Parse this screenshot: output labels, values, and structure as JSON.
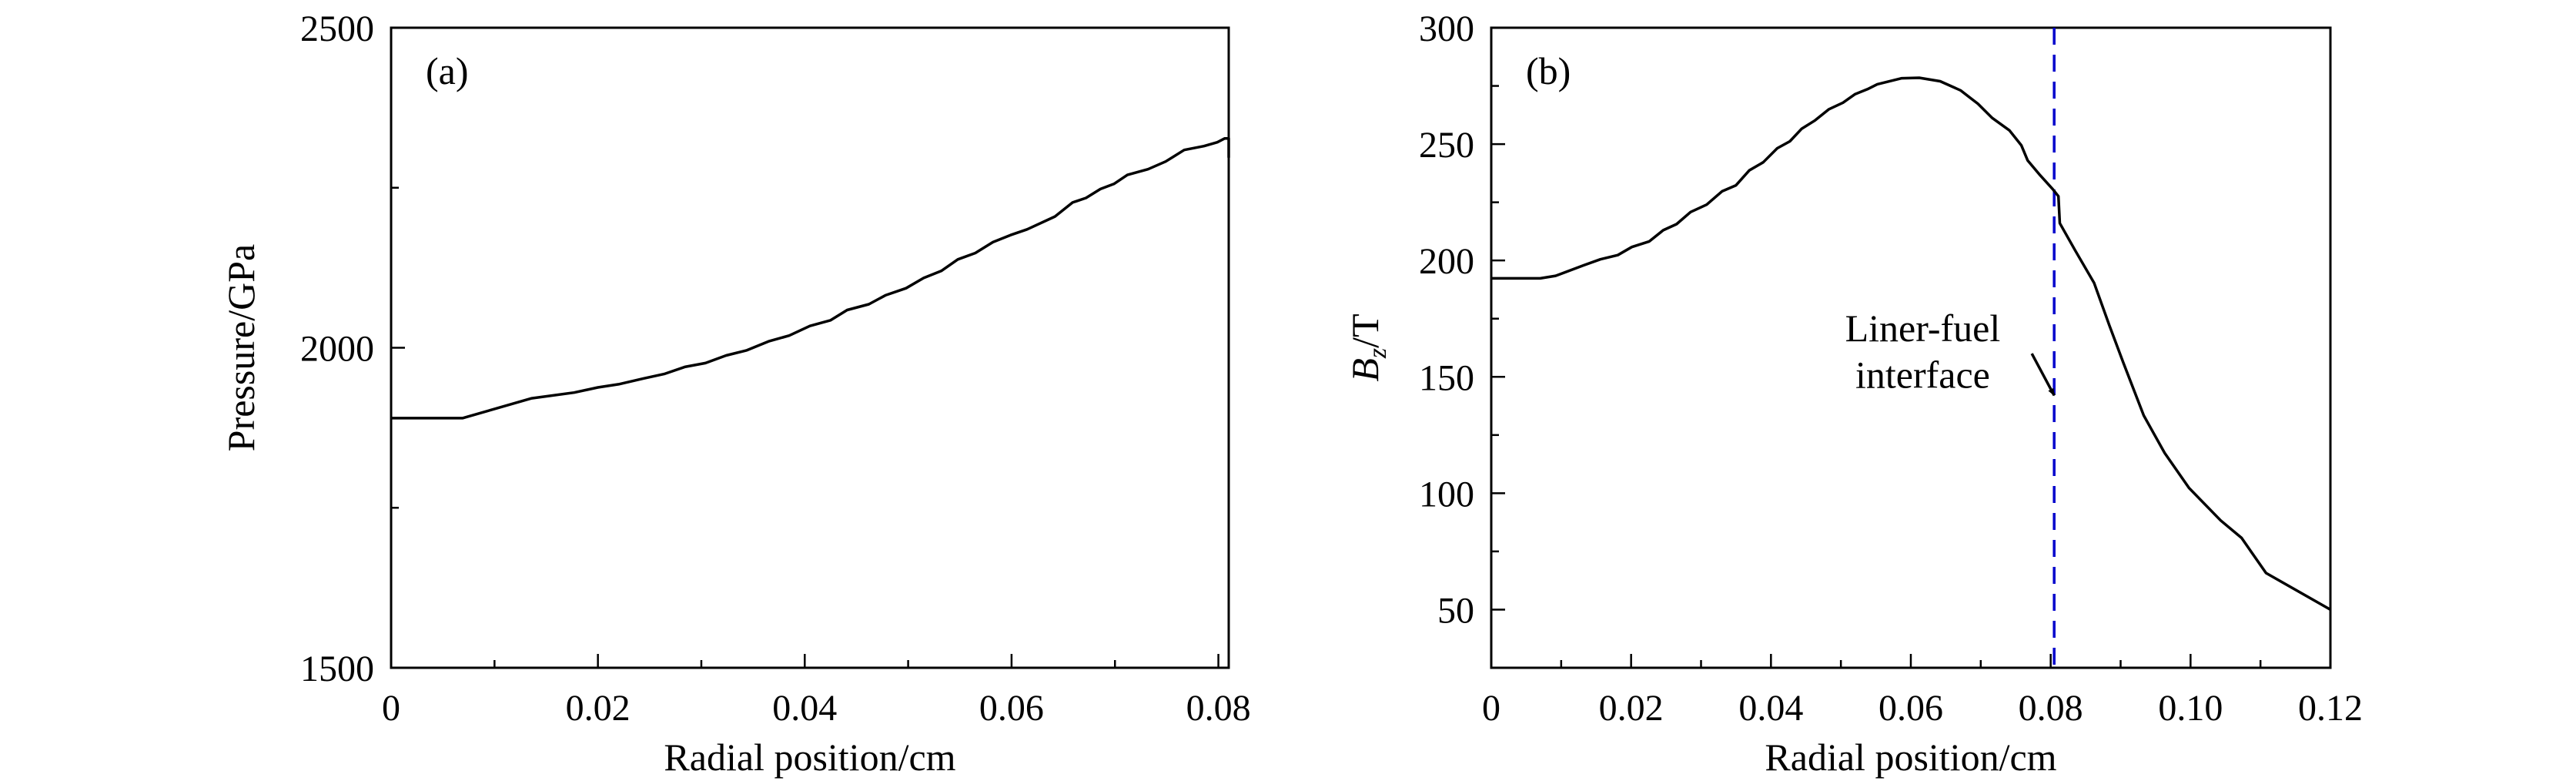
{
  "chart_data": [
    {
      "type": "line",
      "panel_label": "(a)",
      "xlabel": "Radial position/cm",
      "ylabel": "Pressure/GPa",
      "xlim": [
        0,
        0.081
      ],
      "ylim": [
        1500,
        2500
      ],
      "xticks": [
        0,
        0.02,
        0.04,
        0.06,
        0.08
      ],
      "xtick_labels": [
        "0",
        "0.02",
        "0.04",
        "0.06",
        "0.08"
      ],
      "xminor_step": 0.01,
      "yticks": [
        1500,
        2000,
        2500
      ],
      "ytick_labels": [
        "1500",
        "2000",
        "2500"
      ],
      "yminor_step": 250,
      "grid": false,
      "series": [
        {
          "color": "#000000",
          "x": [
            0,
            0.0069,
            0.0136,
            0.0177,
            0.02,
            0.022,
            0.0244,
            0.0264,
            0.0284,
            0.0304,
            0.0324,
            0.0344,
            0.0365,
            0.0385,
            0.0405,
            0.0425,
            0.0441,
            0.0462,
            0.0478,
            0.0498,
            0.0515,
            0.0532,
            0.0548,
            0.0565,
            0.0582,
            0.0599,
            0.0615,
            0.0642,
            0.0659,
            0.0672,
            0.0686,
            0.0699,
            0.0712,
            0.0732,
            0.0749,
            0.0767,
            0.0786,
            0.0799,
            0.0806,
            0.081,
            0.081
          ],
          "y": [
            1890,
            1890,
            1921,
            1930,
            1938,
            1943,
            1952,
            1959,
            1970,
            1976,
            1988,
            1996,
            2010,
            2019,
            2034,
            2043,
            2059,
            2068,
            2082,
            2093,
            2109,
            2120,
            2138,
            2148,
            2165,
            2176,
            2185,
            2205,
            2227,
            2234,
            2248,
            2256,
            2270,
            2279,
            2291,
            2309,
            2315,
            2321,
            2327,
            2327,
            2297
          ]
        }
      ]
    },
    {
      "type": "line",
      "panel_label": "(b)",
      "xlabel": "Radial position/cm",
      "ylabel_parts": [
        {
          "text": "B",
          "style": "italic"
        },
        {
          "text": "z",
          "style": "italic-sub"
        },
        {
          "text": "/T",
          "style": "normal"
        }
      ],
      "xlim": [
        0,
        0.12
      ],
      "ylim": [
        25,
        300
      ],
      "xticks": [
        0,
        0.02,
        0.04,
        0.06,
        0.08,
        0.1,
        0.12
      ],
      "xtick_labels": [
        "0",
        "0.02",
        "0.04",
        "0.06",
        "0.08",
        "0.10",
        "0.12"
      ],
      "xminor_step": 0.01,
      "yticks": [
        50,
        100,
        150,
        200,
        250,
        300
      ],
      "ytick_labels": [
        "50",
        "100",
        "150",
        "200",
        "250",
        "300"
      ],
      "yminor_step": 25,
      "grid": false,
      "series": [
        {
          "color": "#000000",
          "x": [
            0,
            0.007,
            0.0092,
            0.0132,
            0.0156,
            0.0181,
            0.0201,
            0.0226,
            0.0246,
            0.0265,
            0.0285,
            0.0308,
            0.033,
            0.035,
            0.0369,
            0.0389,
            0.0409,
            0.0427,
            0.0444,
            0.0463,
            0.0483,
            0.0503,
            0.052,
            0.0538,
            0.0552,
            0.0587,
            0.0612,
            0.0642,
            0.0671,
            0.0696,
            0.0716,
            0.0741,
            0.0758,
            0.0767,
            0.0785,
            0.0803,
            0.0811,
            0.0813,
            0.0835,
            0.0862,
            0.0884,
            0.0904,
            0.0933,
            0.0963,
            0.0998,
            0.1043,
            0.1073,
            0.1108,
            0.12
          ],
          "y": [
            192.3,
            192.3,
            193.4,
            197.9,
            200.5,
            202.3,
            205.8,
            208.2,
            213,
            215.6,
            220.8,
            224,
            229.7,
            232.3,
            238.7,
            242.2,
            248.2,
            251.2,
            256.6,
            260.2,
            265,
            267.8,
            271.4,
            273.6,
            275.7,
            278.3,
            278.5,
            277,
            273.1,
            267.3,
            261.3,
            255.9,
            249.5,
            243,
            236.6,
            230.6,
            227.6,
            216,
            204.3,
            190.4,
            172,
            156,
            133.4,
            117.3,
            102.2,
            88.3,
            80.8,
            65.7,
            50
          ]
        }
      ],
      "vline": {
        "x": 0.0805,
        "color": "#0000cc",
        "style": "dashed"
      },
      "annotation": {
        "lines": [
          "Liner-fuel",
          "interface"
        ],
        "text_x": 0.0617,
        "text_y": [
          171,
          151
        ],
        "arrow_from": [
          0.0773,
          160
        ],
        "arrow_to": [
          0.0805,
          142
        ]
      }
    }
  ]
}
